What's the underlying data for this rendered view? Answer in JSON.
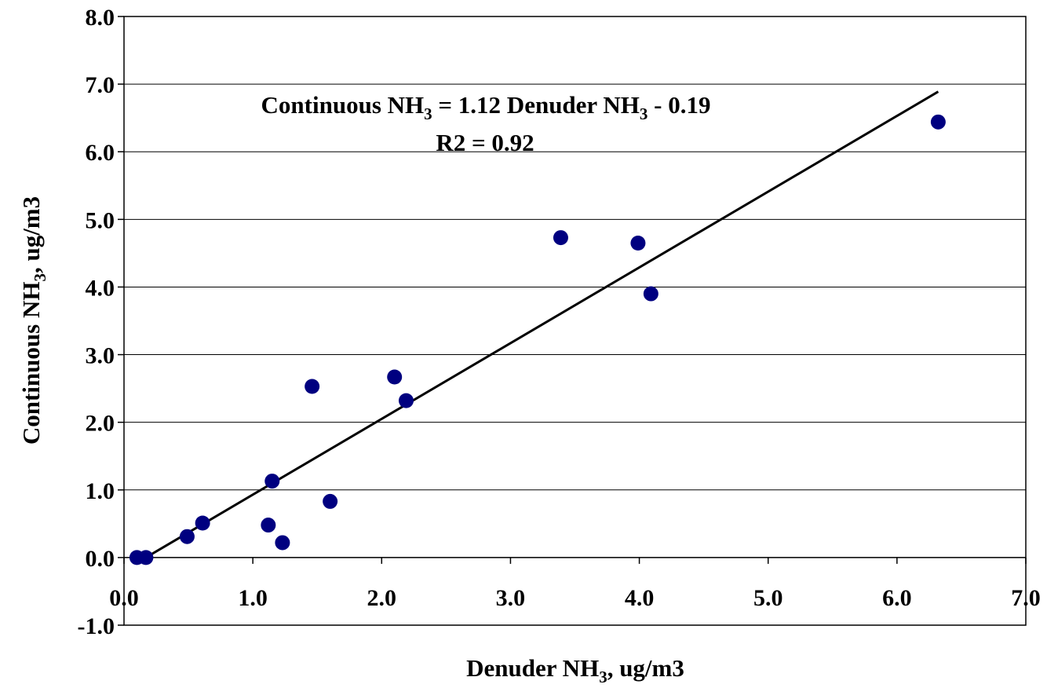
{
  "chart_data": {
    "type": "scatter",
    "title": "",
    "xlabel": {
      "pre": "Denuder NH",
      "sub": "3",
      "post": ", ug/m3"
    },
    "ylabel": {
      "pre": "Continuous NH",
      "sub": "3",
      "post": ", ug/m3"
    },
    "xlim": [
      0.0,
      7.0
    ],
    "ylim": [
      -1.0,
      8.0
    ],
    "x_ticks": [
      "0.0",
      "1.0",
      "2.0",
      "3.0",
      "4.0",
      "5.0",
      "6.0",
      "7.0"
    ],
    "y_ticks": [
      "-1.0",
      "0.0",
      "1.0",
      "2.0",
      "3.0",
      "4.0",
      "5.0",
      "6.0",
      "7.0",
      "8.0"
    ],
    "grid": {
      "horizontal": true,
      "vertical": false
    },
    "marker_color": "#000080",
    "line_color": "#000000",
    "points": [
      {
        "x": 0.1,
        "y": 0.0
      },
      {
        "x": 0.17,
        "y": 0.0
      },
      {
        "x": 0.49,
        "y": 0.31
      },
      {
        "x": 0.61,
        "y": 0.51
      },
      {
        "x": 1.12,
        "y": 0.48
      },
      {
        "x": 1.15,
        "y": 1.13
      },
      {
        "x": 1.23,
        "y": 0.22
      },
      {
        "x": 1.46,
        "y": 2.53
      },
      {
        "x": 1.6,
        "y": 0.83
      },
      {
        "x": 2.1,
        "y": 2.67
      },
      {
        "x": 2.19,
        "y": 2.32
      },
      {
        "x": 3.39,
        "y": 4.73
      },
      {
        "x": 3.99,
        "y": 4.65
      },
      {
        "x": 4.09,
        "y": 3.9
      },
      {
        "x": 6.32,
        "y": 6.44
      }
    ],
    "trendline": {
      "x_start": 0.1,
      "x_end": 6.32,
      "slope": 1.12,
      "intercept": -0.19
    },
    "annotations": {
      "equation": {
        "pre": "Continuous NH",
        "sub1": "3",
        "mid": " = 1.12 Denuder NH",
        "sub2": "3",
        "post": " - 0.19"
      },
      "r2": "R2 = 0.92"
    }
  }
}
